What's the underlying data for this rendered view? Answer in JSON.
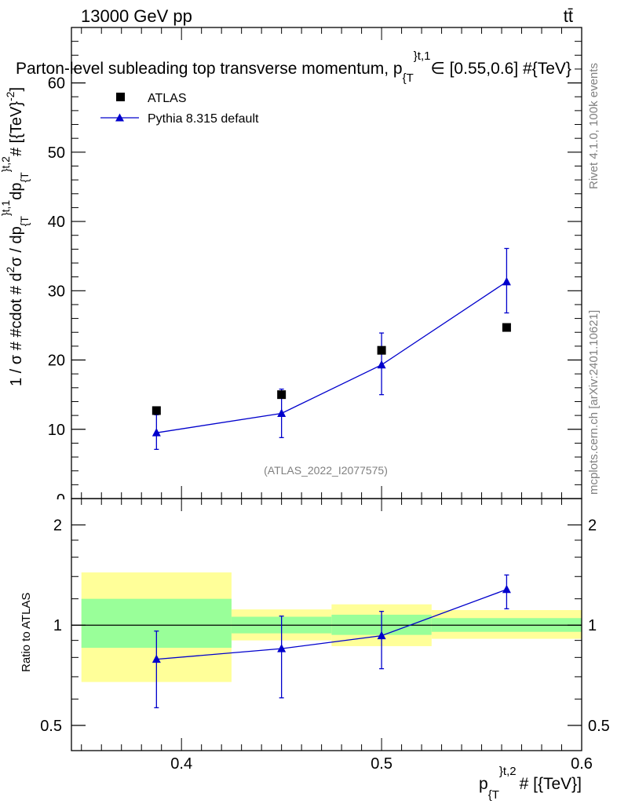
{
  "header": {
    "energy_label": "13000 GeV pp",
    "process_label": "tt̄"
  },
  "side_labels": {
    "rivet": "Rivet 4.1.0,  100k events",
    "mcplots": "mcplots.cern.ch [arXiv:2401.10621]"
  },
  "colors": {
    "atlas": "#000000",
    "pythia": "#0000cc",
    "band_inner": "#99ff99",
    "band_outer": "#ffff99"
  },
  "chart_data": [
    {
      "panel": "main",
      "type": "scatter",
      "title": "Parton-level subleading top transverse momentum, p}^{t,1}∈[0.55,0.6] #{TeV}",
      "title_parts": {
        "main": "Parton-level subleading top transverse momentum, p",
        "sub": "{T",
        "sup": "}t,1",
        "tail": "∈ [0.55,0.6] #{TeV}"
      },
      "ylabel": "1 / σ # #cdot # d²σ / dp_{T}^{t,1} dp_{T}^{t,2} # [{TeV}^{-2}]",
      "ylabel_parts": {
        "lead": "1 / σ # #cdot # d",
        "sup2": "2",
        "mid1": "σ / dp",
        "subA": "{T",
        "supA": "}t,1",
        "mid2": "dp",
        "subB": "{T",
        "supB": "}t,2",
        "tail": "# [{TeV}",
        "supC": "-2",
        "end": "]"
      },
      "ylim": [
        0,
        68
      ],
      "yticks": [
        10,
        20,
        30,
        40,
        50,
        60
      ],
      "yticklabels": [
        "10",
        "20",
        "30",
        "40",
        "50",
        "60"
      ],
      "zero_label": "0",
      "legend": {
        "position": "top-left",
        "atlas_label": "ATLAS",
        "pythia_label": "Pythia 8.315 default"
      },
      "watermark": "(ATLAS_2022_I2077575)",
      "series": [
        {
          "name": "ATLAS",
          "marker": "square",
          "x": [
            0.3875,
            0.45,
            0.5,
            0.5625
          ],
          "y": [
            12.7,
            15.0,
            21.4,
            24.7
          ]
        },
        {
          "name": "Pythia 8.315 default",
          "marker": "triangle",
          "x": [
            0.3875,
            0.45,
            0.5,
            0.5625
          ],
          "y": [
            9.5,
            12.3,
            19.3,
            31.3
          ],
          "yerr_low": [
            2.4,
            3.5,
            4.3,
            4.5
          ],
          "yerr_high": [
            2.6,
            3.5,
            4.6,
            4.8
          ]
        }
      ]
    },
    {
      "panel": "ratio",
      "type": "scatter",
      "ylabel": "Ratio to ATLAS",
      "xlabel_parts": {
        "lead": "p",
        "sub": "{T",
        "sup": "}t,2",
        "tail": "# [{TeV}]"
      },
      "xlim": [
        0.345,
        0.6
      ],
      "xticks": [
        0.4,
        0.5,
        0.6
      ],
      "xticklabels": [
        "0.4",
        "0.5",
        "0.6"
      ],
      "yscale": "log",
      "ylim": [
        0.42,
        2.4
      ],
      "yticks": [
        0.5,
        1,
        2
      ],
      "yticklabels": [
        "0.5",
        "1",
        "2"
      ],
      "bands": [
        {
          "x_low": 0.35,
          "x_high": 0.425,
          "inner": [
            0.855,
            1.2
          ],
          "outer": [
            0.675,
            1.44
          ]
        },
        {
          "x_low": 0.425,
          "x_high": 0.475,
          "inner": [
            0.945,
            1.06
          ],
          "outer": [
            0.9,
            1.115
          ]
        },
        {
          "x_low": 0.475,
          "x_high": 0.525,
          "inner": [
            0.935,
            1.075
          ],
          "outer": [
            0.865,
            1.155
          ]
        },
        {
          "x_low": 0.525,
          "x_high": 0.6,
          "inner": [
            0.955,
            1.05
          ],
          "outer": [
            0.91,
            1.11
          ]
        }
      ],
      "series": [
        {
          "name": "Pythia 8.315 default",
          "x": [
            0.3875,
            0.45,
            0.5,
            0.5625
          ],
          "y": [
            0.79,
            0.85,
            0.93,
            1.28
          ],
          "yerr_low": [
            0.225,
            0.245,
            0.19,
            0.16
          ],
          "yerr_high": [
            0.17,
            0.215,
            0.17,
            0.135
          ]
        }
      ]
    }
  ]
}
